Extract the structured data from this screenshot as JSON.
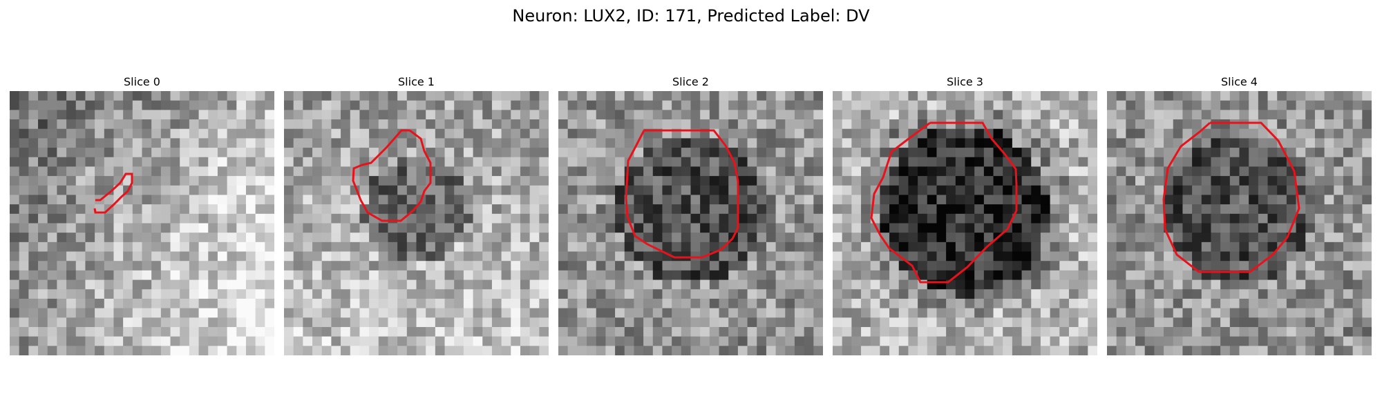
{
  "figure": {
    "title": "Neuron: LUX2, ID: 171, Predicted Label: DV"
  },
  "colors": {
    "background": "#ffffff",
    "contour": "#e8121b"
  },
  "panels": [
    {
      "title": "Slice 0",
      "grid": 28,
      "seed": 101,
      "style": "bright-right"
    },
    {
      "title": "Slice 1",
      "grid": 28,
      "seed": 202,
      "style": "mid-blob"
    },
    {
      "title": "Slice 2",
      "grid": 28,
      "seed": 303,
      "style": "speckle-blob"
    },
    {
      "title": "Slice 3",
      "grid": 28,
      "seed": 404,
      "style": "dark-blob"
    },
    {
      "title": "Slice 4",
      "grid": 28,
      "seed": 505,
      "style": "speckle-blob"
    }
  ]
}
